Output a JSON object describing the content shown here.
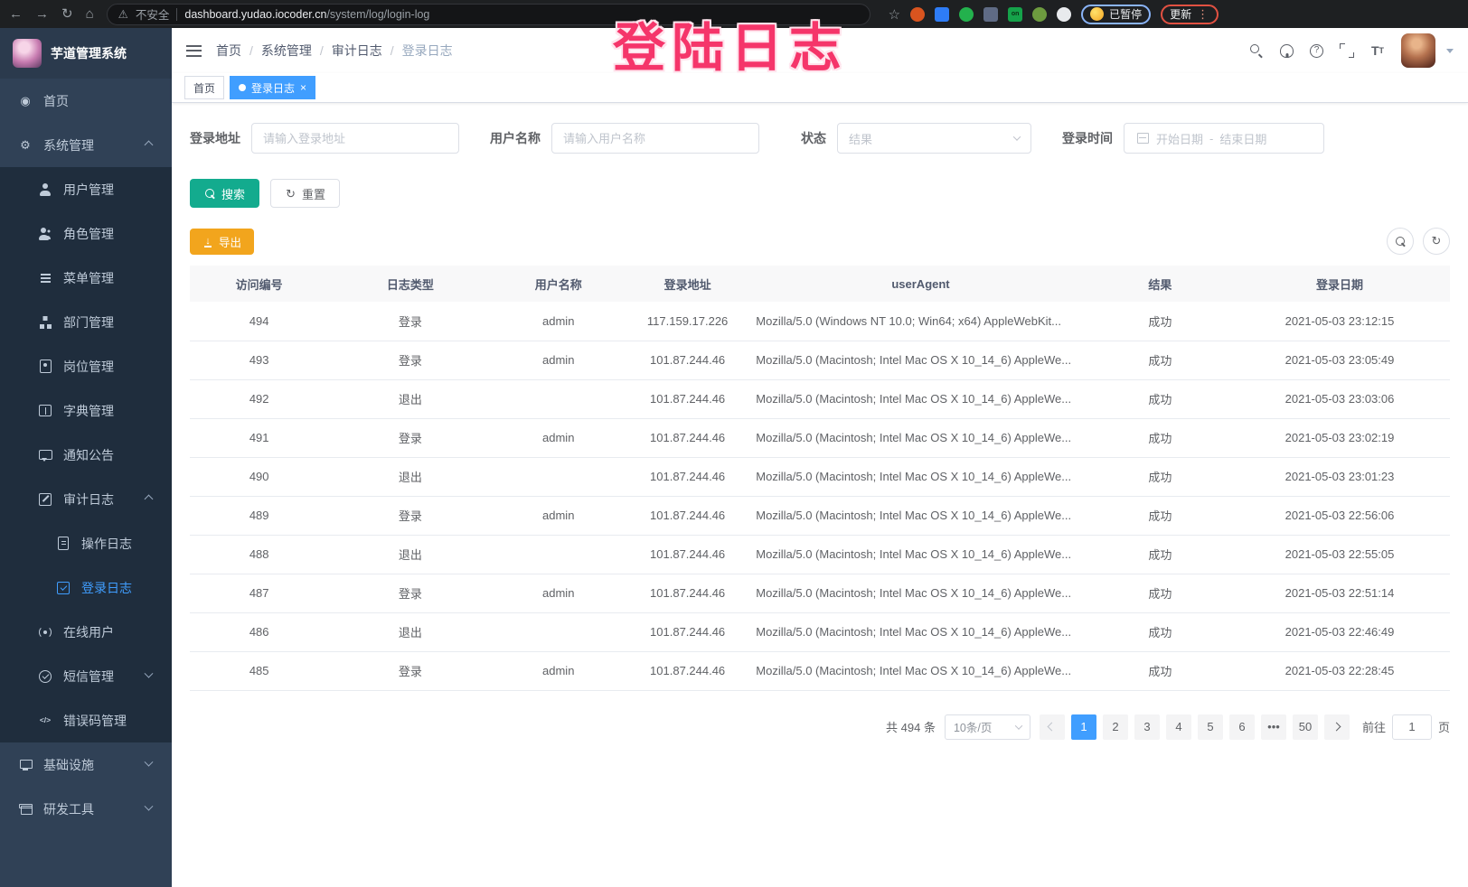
{
  "colors": {
    "accent": "#409eff",
    "search_button": "#13ab8e",
    "export_button": "#f2a51d",
    "sidebar_bg": "#304156",
    "submenu_bg": "#1f2d3d",
    "annotation": "#f5356a"
  },
  "glyphs": {
    "back": "←",
    "forward": "→",
    "reload": "↻",
    "home": "⌂",
    "warning": "⚠",
    "star": "☆",
    "dots": "⋮",
    "separator": "/",
    "help": "?",
    "font_large": "T",
    "font_small": "T",
    "refresh": "↻",
    "download": "↓",
    "close": "×",
    "on_badge": "on"
  },
  "overlay": {
    "text": "登陆日志"
  },
  "browser": {
    "security_label": "不安全",
    "url_host": "dashboard.yudao.iocoder.cn",
    "url_path": "/system/log/login-log",
    "profile_status": "已暂停",
    "update_label": "更新",
    "extensions": [
      {
        "name": "ublock-extension",
        "color": "#d9541f",
        "shape": "round",
        "glyph": ""
      },
      {
        "name": "gem-extension",
        "color": "#2e7cf6",
        "shape": "square",
        "glyph": ""
      },
      {
        "name": "green-check-extension",
        "color": "#23b14d",
        "shape": "round",
        "glyph": ""
      },
      {
        "name": "grid-extension",
        "color": "#5f6b85",
        "shape": "square",
        "glyph": ""
      },
      {
        "name": "switch-on-extension",
        "color": "#15a24a",
        "shape": "square",
        "glyph": "on"
      },
      {
        "name": "leaf-extension",
        "color": "#6d9b3f",
        "shape": "round",
        "glyph": ""
      },
      {
        "name": "puzzle-extension",
        "color": "#e8eaed",
        "shape": "round",
        "glyph": ""
      }
    ]
  },
  "sidebar": {
    "app_title": "芋道管理系统",
    "items": [
      {
        "id": "home",
        "label": "首页",
        "icon": "dashboard",
        "glyph": "◉",
        "level": 1
      },
      {
        "id": "system",
        "label": "系统管理",
        "icon": "gear",
        "glyph": "⚙",
        "level": 1,
        "arrow": "up"
      },
      {
        "id": "users",
        "label": "用户管理",
        "icon": "user",
        "level": 2
      },
      {
        "id": "roles",
        "label": "角色管理",
        "icon": "users",
        "level": 2
      },
      {
        "id": "menus",
        "label": "菜单管理",
        "icon": "menu-list",
        "level": 2
      },
      {
        "id": "departments",
        "label": "部门管理",
        "icon": "org-tree",
        "level": 2
      },
      {
        "id": "posts",
        "label": "岗位管理",
        "icon": "badge",
        "level": 2
      },
      {
        "id": "dictionary",
        "label": "字典管理",
        "icon": "book",
        "level": 2
      },
      {
        "id": "notices",
        "label": "通知公告",
        "icon": "bubble",
        "level": 2
      },
      {
        "id": "audit-log",
        "label": "审计日志",
        "icon": "edit",
        "level": 2,
        "arrow": "up"
      },
      {
        "id": "operation-log",
        "label": "操作日志",
        "icon": "doc",
        "level": 3
      },
      {
        "id": "login-log",
        "label": "登录日志",
        "icon": "login-log",
        "level": 3,
        "active": true
      },
      {
        "id": "online-users",
        "label": "在线用户",
        "icon": "online",
        "level": 2
      },
      {
        "id": "sms",
        "label": "短信管理",
        "icon": "shield-check",
        "level": 2,
        "arrow": "down"
      },
      {
        "id": "error-codes",
        "label": "错误码管理",
        "icon": "code",
        "glyph": "</>",
        "level": 2
      },
      {
        "id": "infrastructure",
        "label": "基础设施",
        "icon": "monitor",
        "level": 1,
        "arrow": "down"
      },
      {
        "id": "dev-tools",
        "label": "研发工具",
        "icon": "toolbox",
        "level": 1,
        "arrow": "down"
      }
    ]
  },
  "header": {
    "breadcrumb": [
      "首页",
      "系统管理",
      "审计日志",
      "登录日志"
    ]
  },
  "tags": [
    {
      "label": "首页",
      "active": false
    },
    {
      "label": "登录日志",
      "active": true
    }
  ],
  "filters": {
    "address_label": "登录地址",
    "address_placeholder": "请输入登录地址",
    "username_label": "用户名称",
    "username_placeholder": "请输入用户名称",
    "status_label": "状态",
    "status_placeholder": "结果",
    "time_label": "登录时间",
    "start_placeholder": "开始日期",
    "range_separator": "-",
    "end_placeholder": "结束日期",
    "search_label": "搜索",
    "reset_label": "重置"
  },
  "toolbar": {
    "export_label": "导出"
  },
  "table": {
    "columns": [
      "访问编号",
      "日志类型",
      "用户名称",
      "登录地址",
      "userAgent",
      "结果",
      "登录日期"
    ],
    "rows": [
      [
        "494",
        "登录",
        "admin",
        "117.159.17.226",
        "Mozilla/5.0 (Windows NT 10.0; Win64; x64) AppleWebKit...",
        "成功",
        "2021-05-03 23:12:15"
      ],
      [
        "493",
        "登录",
        "admin",
        "101.87.244.46",
        "Mozilla/5.0 (Macintosh; Intel Mac OS X 10_14_6) AppleWe...",
        "成功",
        "2021-05-03 23:05:49"
      ],
      [
        "492",
        "退出",
        "",
        "101.87.244.46",
        "Mozilla/5.0 (Macintosh; Intel Mac OS X 10_14_6) AppleWe...",
        "成功",
        "2021-05-03 23:03:06"
      ],
      [
        "491",
        "登录",
        "admin",
        "101.87.244.46",
        "Mozilla/5.0 (Macintosh; Intel Mac OS X 10_14_6) AppleWe...",
        "成功",
        "2021-05-03 23:02:19"
      ],
      [
        "490",
        "退出",
        "",
        "101.87.244.46",
        "Mozilla/5.0 (Macintosh; Intel Mac OS X 10_14_6) AppleWe...",
        "成功",
        "2021-05-03 23:01:23"
      ],
      [
        "489",
        "登录",
        "admin",
        "101.87.244.46",
        "Mozilla/5.0 (Macintosh; Intel Mac OS X 10_14_6) AppleWe...",
        "成功",
        "2021-05-03 22:56:06"
      ],
      [
        "488",
        "退出",
        "",
        "101.87.244.46",
        "Mozilla/5.0 (Macintosh; Intel Mac OS X 10_14_6) AppleWe...",
        "成功",
        "2021-05-03 22:55:05"
      ],
      [
        "487",
        "登录",
        "admin",
        "101.87.244.46",
        "Mozilla/5.0 (Macintosh; Intel Mac OS X 10_14_6) AppleWe...",
        "成功",
        "2021-05-03 22:51:14"
      ],
      [
        "486",
        "退出",
        "",
        "101.87.244.46",
        "Mozilla/5.0 (Macintosh; Intel Mac OS X 10_14_6) AppleWe...",
        "成功",
        "2021-05-03 22:46:49"
      ],
      [
        "485",
        "登录",
        "admin",
        "101.87.244.46",
        "Mozilla/5.0 (Macintosh; Intel Mac OS X 10_14_6) AppleWe...",
        "成功",
        "2021-05-03 22:28:45"
      ]
    ]
  },
  "pagination": {
    "total_text": "共 494 条",
    "page_size": "10条/页",
    "pages": [
      "1",
      "2",
      "3",
      "4",
      "5",
      "6",
      "•••",
      "50"
    ],
    "active_page": "1",
    "goto_label": "前往",
    "goto_value": "1",
    "page_unit": "页"
  }
}
